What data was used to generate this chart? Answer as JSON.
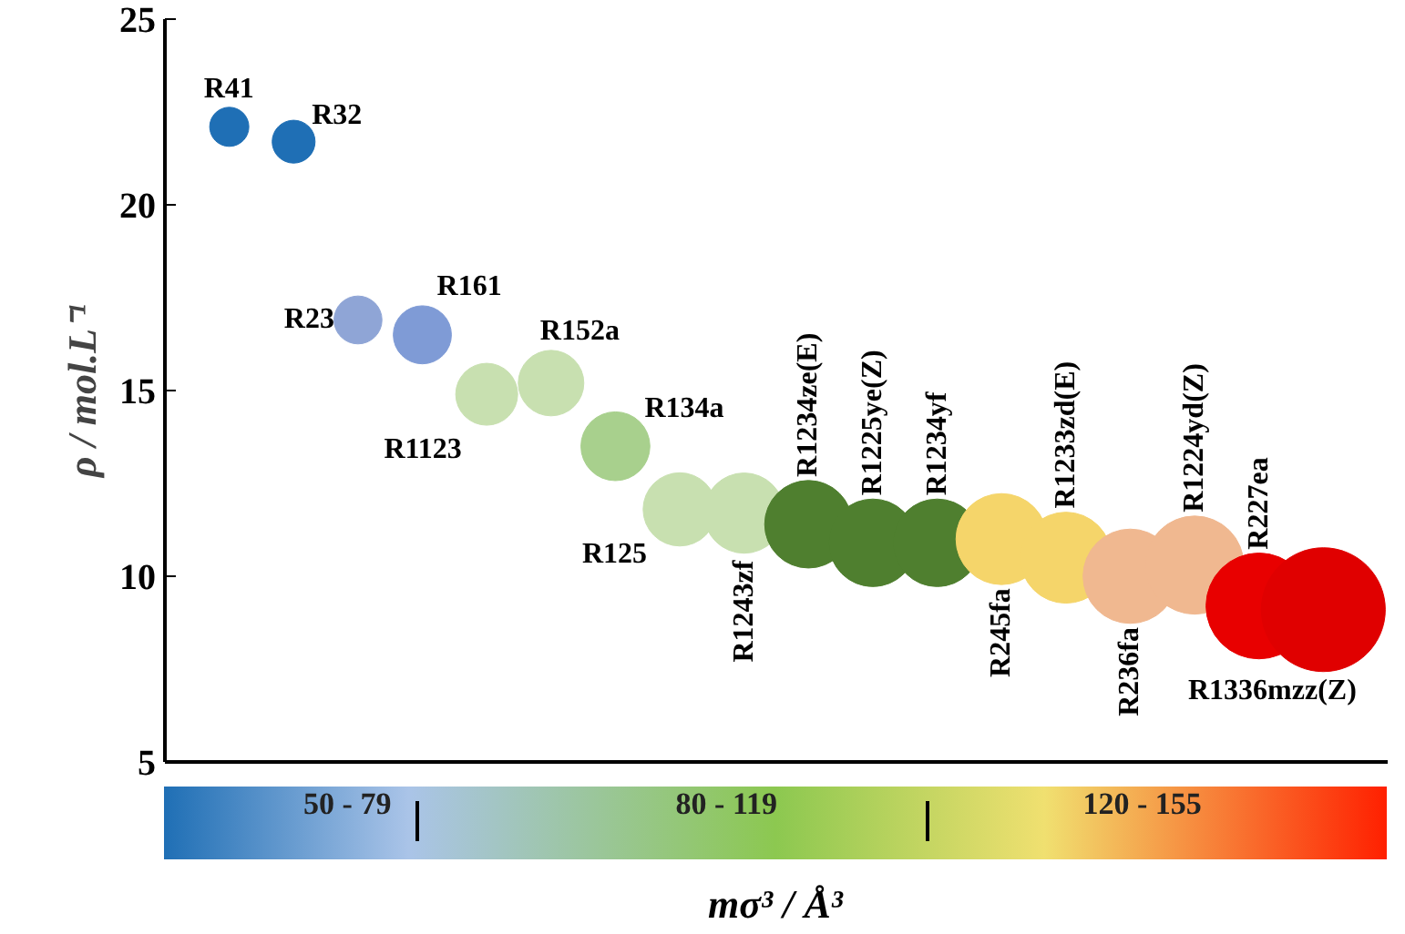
{
  "chart_data": {
    "type": "bubble",
    "ylabel": "ρ / mol.L⁻¹",
    "xlabel": "mσ³ / Å³",
    "categories": [
      null,
      null,
      null,
      null,
      null,
      null,
      null,
      null,
      null,
      null,
      null,
      null,
      null,
      null,
      null,
      null,
      null,
      null
    ],
    "ylim": [
      5,
      25
    ],
    "yticks": [
      5,
      10,
      15,
      20,
      25
    ],
    "tick_labels": "y",
    "grid": false,
    "legend": false,
    "series": [
      {
        "name": "R41",
        "color": "#1f6fb5",
        "values": [
          22.1,
          null,
          null,
          null,
          null,
          null,
          null,
          null,
          null,
          null,
          null,
          null,
          null,
          null,
          null,
          null,
          null,
          null
        ],
        "sizes": [
          0.1,
          null,
          null,
          null,
          null,
          null,
          null,
          null,
          null,
          null,
          null,
          null,
          null,
          null,
          null,
          null,
          null,
          null
        ]
      },
      {
        "name": "R32",
        "color": "#1f6fb5",
        "values": [
          null,
          21.7,
          null,
          null,
          null,
          null,
          null,
          null,
          null,
          null,
          null,
          null,
          null,
          null,
          null,
          null,
          null,
          null
        ],
        "sizes": [
          null,
          0.12,
          null,
          null,
          null,
          null,
          null,
          null,
          null,
          null,
          null,
          null,
          null,
          null,
          null,
          null,
          null,
          null
        ]
      },
      {
        "name": "R23",
        "color": "#8fa5d6",
        "values": [
          null,
          null,
          16.9,
          null,
          null,
          null,
          null,
          null,
          null,
          null,
          null,
          null,
          null,
          null,
          null,
          null,
          null,
          null
        ],
        "sizes": [
          null,
          null,
          0.15,
          null,
          null,
          null,
          null,
          null,
          null,
          null,
          null,
          null,
          null,
          null,
          null,
          null,
          null,
          null
        ]
      },
      {
        "name": "R161",
        "color": "#7f9bd6",
        "values": [
          null,
          null,
          null,
          16.5,
          null,
          null,
          null,
          null,
          null,
          null,
          null,
          null,
          null,
          null,
          null,
          null,
          null,
          null
        ],
        "sizes": [
          null,
          null,
          null,
          0.22,
          null,
          null,
          null,
          null,
          null,
          null,
          null,
          null,
          null,
          null,
          null,
          null,
          null,
          null
        ]
      },
      {
        "name": "R1123",
        "color": "#c8e0b0",
        "values": [
          null,
          null,
          null,
          null,
          14.9,
          null,
          null,
          null,
          null,
          null,
          null,
          null,
          null,
          null,
          null,
          null,
          null,
          null
        ],
        "sizes": [
          null,
          null,
          null,
          null,
          0.25,
          null,
          null,
          null,
          null,
          null,
          null,
          null,
          null,
          null,
          null,
          null,
          null,
          null
        ]
      },
      {
        "name": "R152a",
        "color": "#c8e0b0",
        "values": [
          null,
          null,
          null,
          null,
          null,
          15.2,
          null,
          null,
          null,
          null,
          null,
          null,
          null,
          null,
          null,
          null,
          null,
          null
        ],
        "sizes": [
          null,
          null,
          null,
          null,
          null,
          0.28,
          null,
          null,
          null,
          null,
          null,
          null,
          null,
          null,
          null,
          null,
          null,
          null
        ]
      },
      {
        "name": "R134a",
        "color": "#a8d08d",
        "values": [
          null,
          null,
          null,
          null,
          null,
          null,
          13.5,
          null,
          null,
          null,
          null,
          null,
          null,
          null,
          null,
          null,
          null,
          null
        ],
        "sizes": [
          null,
          null,
          null,
          null,
          null,
          null,
          0.31,
          null,
          null,
          null,
          null,
          null,
          null,
          null,
          null,
          null,
          null,
          null
        ]
      },
      {
        "name": "R125",
        "color": "#c8e0b0",
        "values": [
          null,
          null,
          null,
          null,
          null,
          null,
          null,
          11.8,
          null,
          null,
          null,
          null,
          null,
          null,
          null,
          null,
          null,
          null
        ],
        "sizes": [
          null,
          null,
          null,
          null,
          null,
          null,
          null,
          0.35,
          null,
          null,
          null,
          null,
          null,
          null,
          null,
          null,
          null,
          null
        ]
      },
      {
        "name": "R1243zf",
        "color": "#c8e0b0",
        "values": [
          null,
          null,
          null,
          null,
          null,
          null,
          null,
          null,
          11.7,
          null,
          null,
          null,
          null,
          null,
          null,
          null,
          null,
          null
        ],
        "sizes": [
          null,
          null,
          null,
          null,
          null,
          null,
          null,
          null,
          0.42,
          null,
          null,
          null,
          null,
          null,
          null,
          null,
          null,
          null
        ]
      },
      {
        "name": "R1234ze(E)",
        "color": "#4f7f2f",
        "values": [
          null,
          null,
          null,
          null,
          null,
          null,
          null,
          null,
          null,
          11.4,
          null,
          null,
          null,
          null,
          null,
          null,
          null,
          null
        ],
        "sizes": [
          null,
          null,
          null,
          null,
          null,
          null,
          null,
          null,
          null,
          0.5,
          null,
          null,
          null,
          null,
          null,
          null,
          null,
          null
        ]
      },
      {
        "name": "R1225ye(Z)",
        "color": "#4f7f2f",
        "values": [
          null,
          null,
          null,
          null,
          null,
          null,
          null,
          null,
          null,
          null,
          10.9,
          null,
          null,
          null,
          null,
          null,
          null,
          null
        ],
        "sizes": [
          null,
          null,
          null,
          null,
          null,
          null,
          null,
          null,
          null,
          null,
          0.5,
          null,
          null,
          null,
          null,
          null,
          null,
          null
        ]
      },
      {
        "name": "R1234yf",
        "color": "#4f7f2f",
        "values": [
          null,
          null,
          null,
          null,
          null,
          null,
          null,
          null,
          null,
          null,
          null,
          10.9,
          null,
          null,
          null,
          null,
          null,
          null
        ],
        "sizes": [
          null,
          null,
          null,
          null,
          null,
          null,
          null,
          null,
          null,
          null,
          null,
          0.5,
          null,
          null,
          null,
          null,
          null,
          null
        ]
      },
      {
        "name": "R245fa",
        "color": "#f5d56a",
        "values": [
          null,
          null,
          null,
          null,
          null,
          null,
          null,
          null,
          null,
          null,
          null,
          null,
          11.0,
          null,
          null,
          null,
          null,
          null
        ],
        "sizes": [
          null,
          null,
          null,
          null,
          null,
          null,
          null,
          null,
          null,
          null,
          null,
          null,
          0.54,
          null,
          null,
          null,
          null,
          null
        ]
      },
      {
        "name": "R1233zd(E)",
        "color": "#f5d56a",
        "values": [
          null,
          null,
          null,
          null,
          null,
          null,
          null,
          null,
          null,
          null,
          null,
          null,
          null,
          10.5,
          null,
          null,
          null,
          null
        ],
        "sizes": [
          null,
          null,
          null,
          null,
          null,
          null,
          null,
          null,
          null,
          null,
          null,
          null,
          null,
          0.54,
          null,
          null,
          null,
          null
        ]
      },
      {
        "name": "R236fa",
        "color": "#f0b890",
        "values": [
          null,
          null,
          null,
          null,
          null,
          null,
          null,
          null,
          null,
          null,
          null,
          null,
          null,
          null,
          10.0,
          null,
          null,
          null
        ],
        "sizes": [
          null,
          null,
          null,
          null,
          null,
          null,
          null,
          null,
          null,
          null,
          null,
          null,
          null,
          null,
          0.58,
          null,
          null,
          null
        ]
      },
      {
        "name": "R1224yd(Z)",
        "color": "#f0b890",
        "values": [
          null,
          null,
          null,
          null,
          null,
          null,
          null,
          null,
          null,
          null,
          null,
          null,
          null,
          null,
          null,
          10.3,
          null,
          null
        ],
        "sizes": [
          null,
          null,
          null,
          null,
          null,
          null,
          null,
          null,
          null,
          null,
          null,
          null,
          null,
          null,
          null,
          0.63,
          null,
          null
        ]
      },
      {
        "name": "R227ea",
        "color": "#e80000",
        "values": [
          null,
          null,
          null,
          null,
          null,
          null,
          null,
          null,
          null,
          null,
          null,
          null,
          null,
          null,
          null,
          null,
          9.2,
          null
        ],
        "sizes": [
          null,
          null,
          null,
          null,
          null,
          null,
          null,
          null,
          null,
          null,
          null,
          null,
          null,
          null,
          null,
          null,
          0.73,
          null
        ]
      },
      {
        "name": "R1336mzz(Z)",
        "color": "#e00000",
        "values": [
          null,
          null,
          null,
          null,
          null,
          null,
          null,
          null,
          null,
          null,
          null,
          null,
          null,
          null,
          null,
          null,
          null,
          9.1
        ],
        "sizes": [
          null,
          null,
          null,
          null,
          null,
          null,
          null,
          null,
          null,
          null,
          null,
          null,
          null,
          null,
          null,
          null,
          null,
          1.0
        ]
      }
    ],
    "annotations": [
      "50 - 79",
      "80 - 119",
      "120 - 155"
    ]
  }
}
